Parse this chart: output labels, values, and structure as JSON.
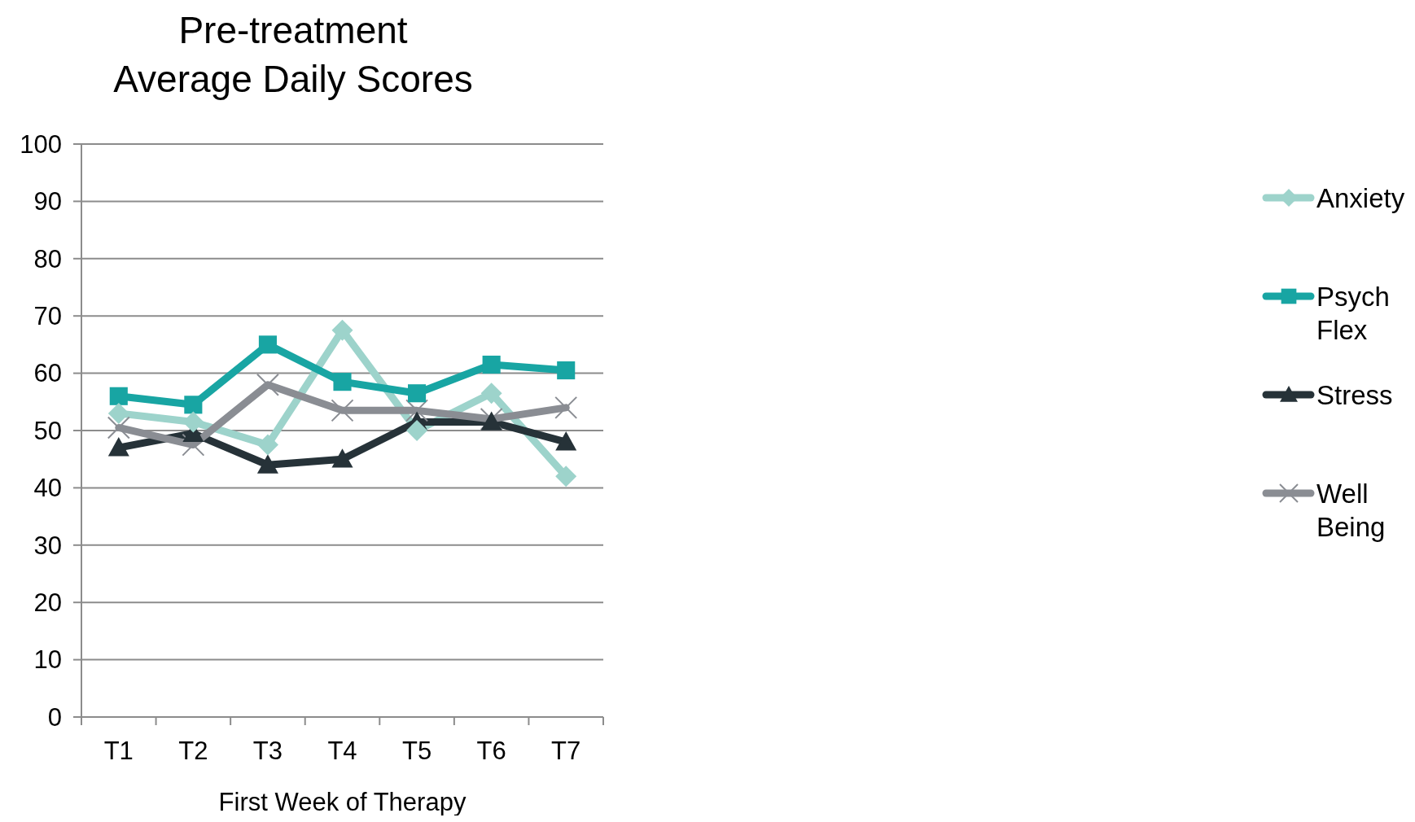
{
  "chart_data": {
    "type": "line",
    "title": "Pre-treatment\nAverage Daily Scores",
    "xlabel": "First Week of Therapy",
    "categories": [
      "T1",
      "T2",
      "T3",
      "T4",
      "T5",
      "T6",
      "T7"
    ],
    "series": [
      {
        "name": "Anxiety",
        "color": "#9dd3cb",
        "marker": "diamond",
        "values": [
          53,
          51.5,
          47.5,
          67.5,
          50,
          56.5,
          42
        ]
      },
      {
        "name": "Psych Flex",
        "color": "#18a5a3",
        "marker": "square",
        "values": [
          56,
          54.5,
          65,
          58.5,
          56.5,
          61.5,
          60.5
        ]
      },
      {
        "name": "Stress",
        "color": "#263238",
        "marker": "triangle",
        "values": [
          47,
          49.5,
          44,
          45,
          51.5,
          51.5,
          48
        ]
      },
      {
        "name": "Well Being",
        "color": "#8a8d93",
        "marker": "cross",
        "values": [
          50.5,
          47.5,
          58,
          53.5,
          53.5,
          52,
          54
        ]
      }
    ],
    "ylim": [
      0,
      100
    ],
    "yticks": [
      0,
      10,
      20,
      30,
      40,
      50,
      60,
      70,
      80,
      90,
      100
    ],
    "grid": "y",
    "legend": "right",
    "line_style": "solid"
  }
}
